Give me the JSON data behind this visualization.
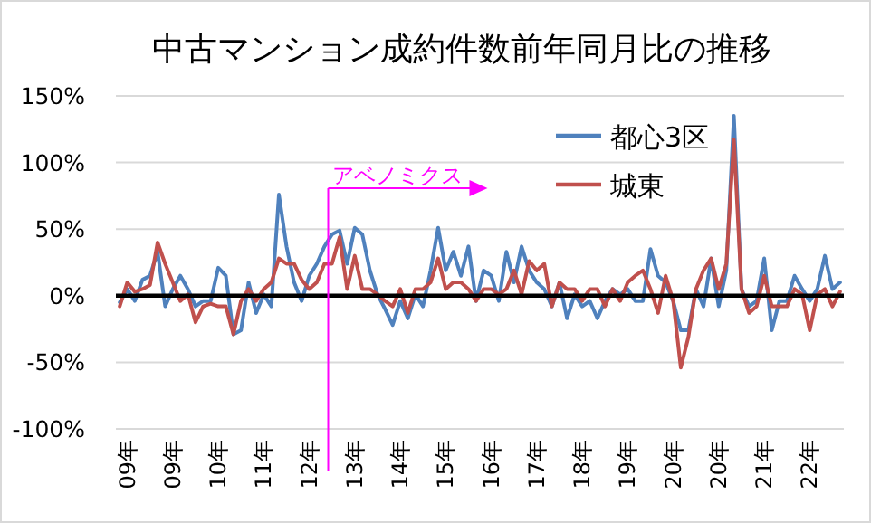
{
  "chart_data": {
    "type": "line",
    "title": "中古マンション成約件数前年同月比の推移",
    "categories": [
      null,
      "09年",
      null,
      null,
      null,
      null,
      null,
      "09年",
      null,
      null,
      null,
      null,
      null,
      "10年",
      null,
      null,
      null,
      null,
      null,
      "11年",
      null,
      null,
      null,
      null,
      null,
      "12年",
      null,
      null,
      null,
      null,
      null,
      "13年",
      null,
      null,
      null,
      null,
      null,
      "14年",
      null,
      null,
      null,
      null,
      null,
      "15年",
      null,
      null,
      null,
      null,
      null,
      "16年",
      null,
      null,
      null,
      null,
      null,
      "17年",
      null,
      null,
      null,
      null,
      null,
      "18年",
      null,
      null,
      null,
      null,
      null,
      "19年",
      null,
      null,
      null,
      null,
      null,
      "20年",
      null,
      null,
      null,
      null,
      null,
      "20年",
      null,
      null,
      null,
      null,
      null,
      "21年",
      null,
      null,
      null,
      null,
      null,
      "22年",
      null,
      null,
      null,
      null
    ],
    "series": [
      {
        "name": "都心3区",
        "color": "#4f81bd",
        "values": [
          -5,
          5,
          -4,
          12,
          15,
          33,
          -8,
          5,
          15,
          5,
          -8,
          -4,
          -4,
          21,
          15,
          -29,
          -26,
          10,
          -13,
          1,
          -8,
          76,
          37,
          10,
          -4,
          15,
          24,
          37,
          46,
          49,
          24,
          51,
          46,
          19,
          1,
          -10,
          -22,
          -4,
          -17,
          1,
          -8,
          19,
          51,
          19,
          33,
          15,
          37,
          -4,
          19,
          15,
          -4,
          33,
          10,
          37,
          19,
          10,
          5,
          -8,
          10,
          -17,
          1,
          -8,
          -4,
          -17,
          -4,
          5,
          1,
          5,
          -4,
          -4,
          35,
          15,
          10,
          -4,
          -26,
          -26,
          5,
          -8,
          28,
          -8,
          19,
          135,
          5,
          -8,
          -4,
          28,
          -26,
          -4,
          -4,
          15,
          5,
          -4,
          5,
          30,
          5,
          10
        ]
      },
      {
        "name": "城東",
        "color": "#c0504d",
        "values": [
          -8,
          10,
          3,
          5,
          8,
          40,
          24,
          10,
          -4,
          1,
          -20,
          -8,
          -6,
          -8,
          -8,
          -29,
          -4,
          5,
          -4,
          5,
          10,
          28,
          24,
          24,
          12,
          5,
          10,
          24,
          24,
          44,
          5,
          30,
          5,
          5,
          1,
          -4,
          -8,
          5,
          -13,
          5,
          5,
          10,
          28,
          5,
          10,
          10,
          5,
          -4,
          5,
          5,
          1,
          5,
          19,
          1,
          26,
          19,
          24,
          -8,
          10,
          5,
          5,
          -4,
          5,
          5,
          -8,
          5,
          -4,
          10,
          15,
          19,
          5,
          -13,
          15,
          -4,
          -54,
          -31,
          5,
          19,
          28,
          5,
          24,
          117,
          5,
          -13,
          -8,
          15,
          -8,
          -8,
          -8,
          5,
          1,
          -26,
          1,
          5,
          -8,
          3
        ]
      }
    ],
    "ylim": [
      -100,
      150
    ],
    "yticks": [
      {
        "value": -100,
        "label": "-100%"
      },
      {
        "value": -50,
        "label": "-50%"
      },
      {
        "value": 0,
        "label": "0%"
      },
      {
        "value": 50,
        "label": "50%"
      },
      {
        "value": 100,
        "label": "100%"
      },
      {
        "value": 150,
        "label": "150%"
      }
    ],
    "grid": "y",
    "legend": "top right",
    "annotations": [
      "アベノミクス"
    ]
  }
}
